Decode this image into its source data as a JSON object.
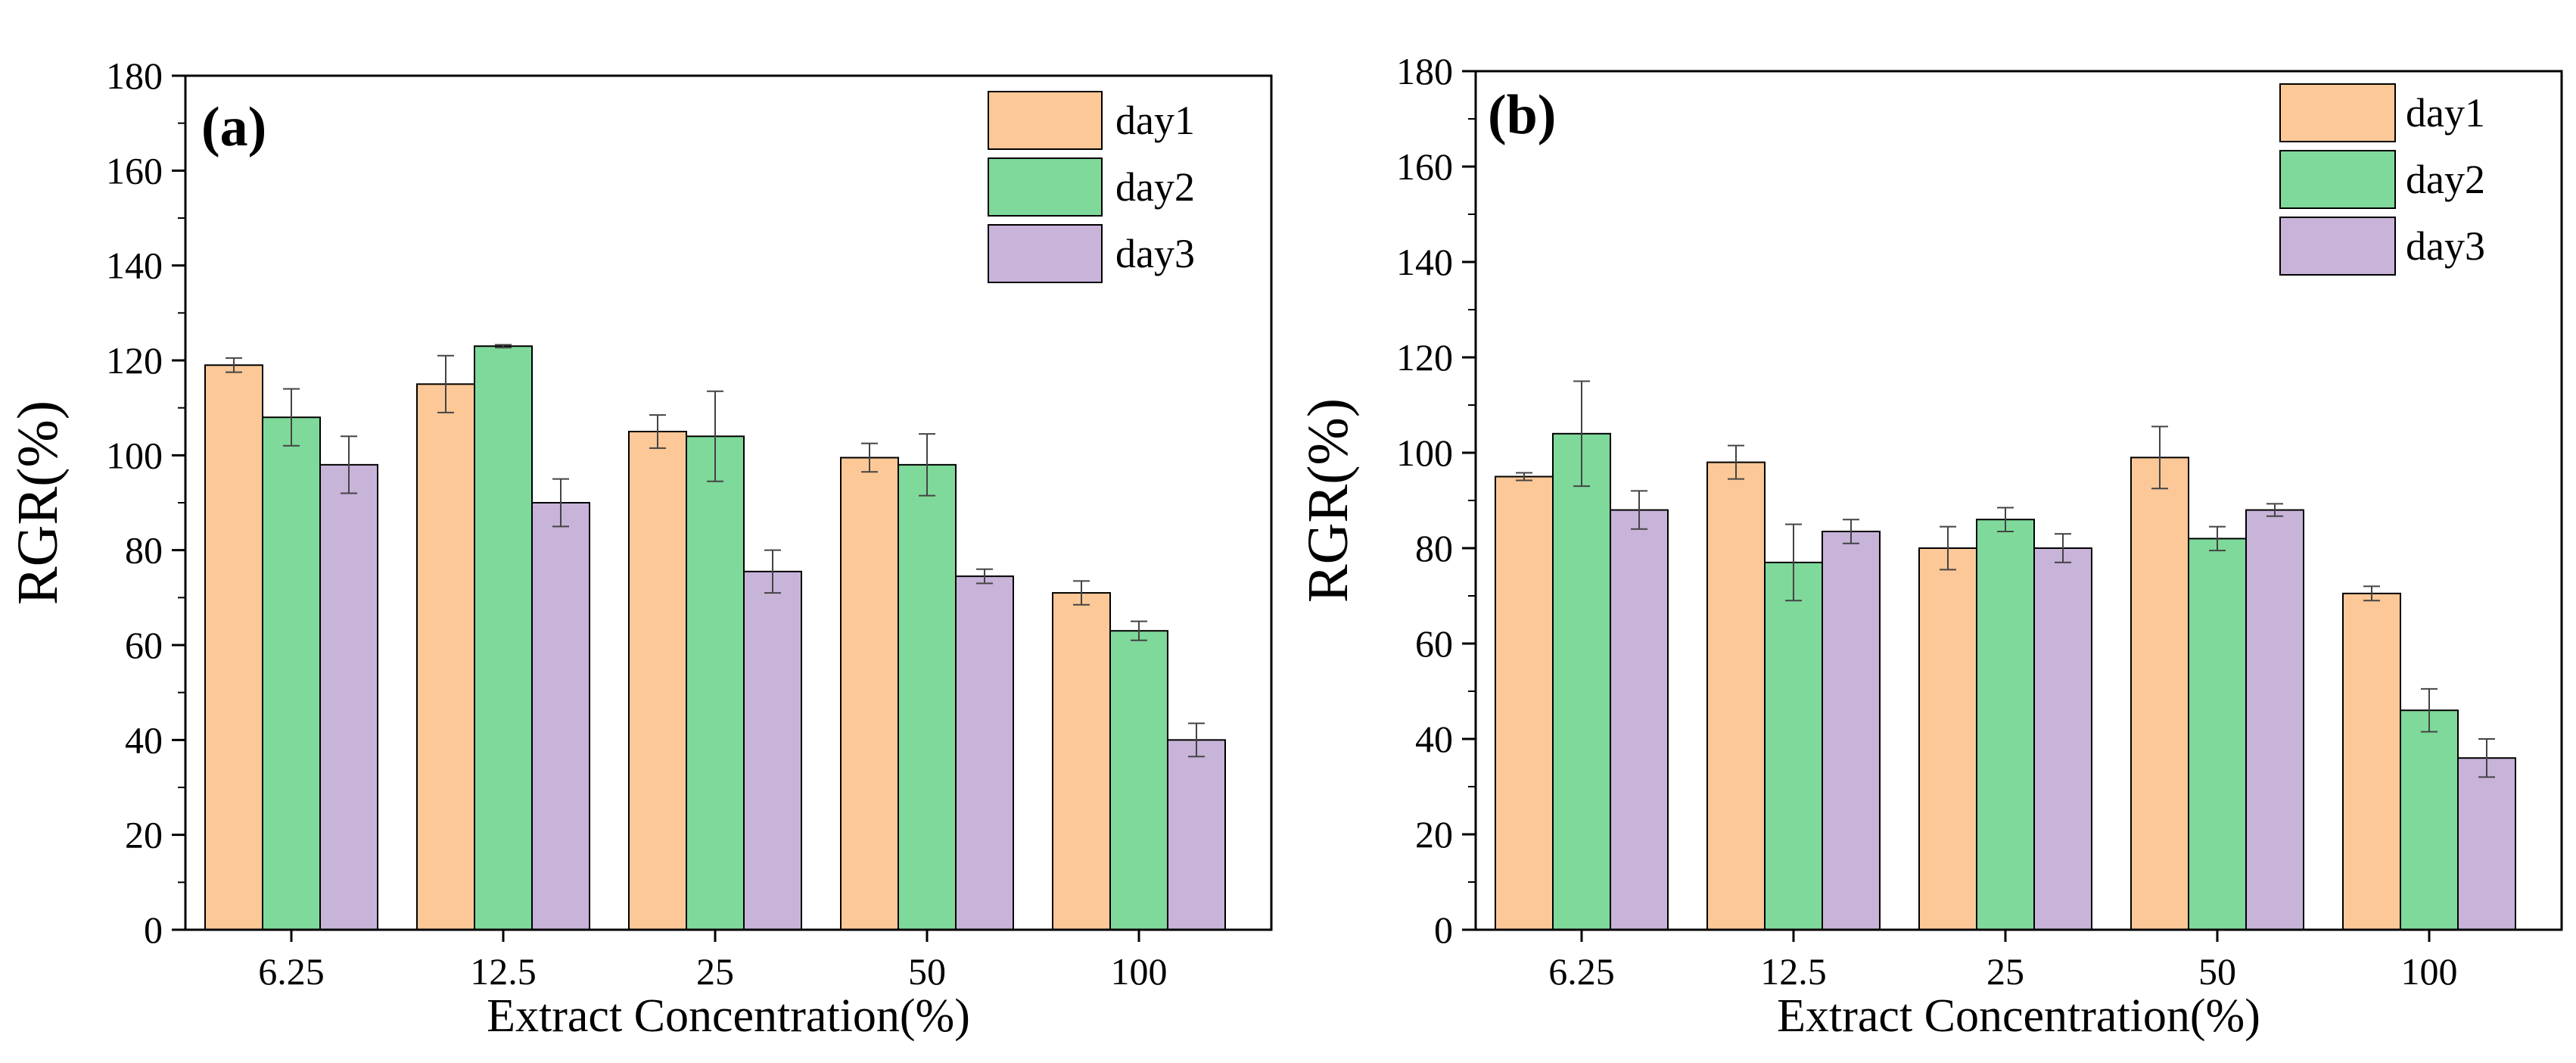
{
  "colors": {
    "day1": "#fcc897",
    "day2": "#7fd99a",
    "day3": "#c8b3d9",
    "axis": "#000000",
    "error_bar": "#444444"
  },
  "chart_data": [
    {
      "type": "bar",
      "panel_label": "(a)",
      "xlabel": "Extract Concentration(%)",
      "ylabel": "RGR(%)",
      "ylim": [
        0,
        180
      ],
      "yticks": [
        "0",
        "20",
        "40",
        "60",
        "80",
        "100",
        "120",
        "140",
        "160",
        "180"
      ],
      "categories": [
        "6.25",
        "12.5",
        "25",
        "50",
        "100"
      ],
      "legend_position": "top-right",
      "series": [
        {
          "name": "day1",
          "values": [
            119,
            115,
            105,
            99.5,
            71
          ],
          "errors": [
            1.5,
            6,
            3.5,
            3,
            2.5
          ]
        },
        {
          "name": "day2",
          "values": [
            108,
            123,
            104,
            98,
            63
          ],
          "errors": [
            6,
            0.3,
            9.5,
            6.5,
            2
          ]
        },
        {
          "name": "day3",
          "values": [
            98,
            90,
            75.5,
            74.5,
            40
          ],
          "errors": [
            6,
            5,
            4.5,
            1.5,
            3.5
          ]
        }
      ]
    },
    {
      "type": "bar",
      "panel_label": "(b)",
      "xlabel": "Extract Concentration(%)",
      "ylabel": "RGR(%)",
      "ylim": [
        0,
        180
      ],
      "yticks": [
        "0",
        "20",
        "40",
        "60",
        "80",
        "100",
        "120",
        "140",
        "160",
        "180"
      ],
      "categories": [
        "6.25",
        "12.5",
        "25",
        "50",
        "100"
      ],
      "legend_position": "top-right",
      "series": [
        {
          "name": "day1",
          "values": [
            95,
            98,
            80,
            99,
            70.5
          ],
          "errors": [
            0.8,
            3.5,
            4.5,
            6.5,
            1.5
          ]
        },
        {
          "name": "day2",
          "values": [
            104,
            77,
            86,
            82,
            46
          ],
          "errors": [
            11,
            8,
            2.5,
            2.5,
            4.5
          ]
        },
        {
          "name": "day3",
          "values": [
            88,
            83.5,
            80,
            88,
            36
          ],
          "errors": [
            4,
            2.5,
            3,
            1.3,
            4
          ]
        }
      ]
    }
  ]
}
